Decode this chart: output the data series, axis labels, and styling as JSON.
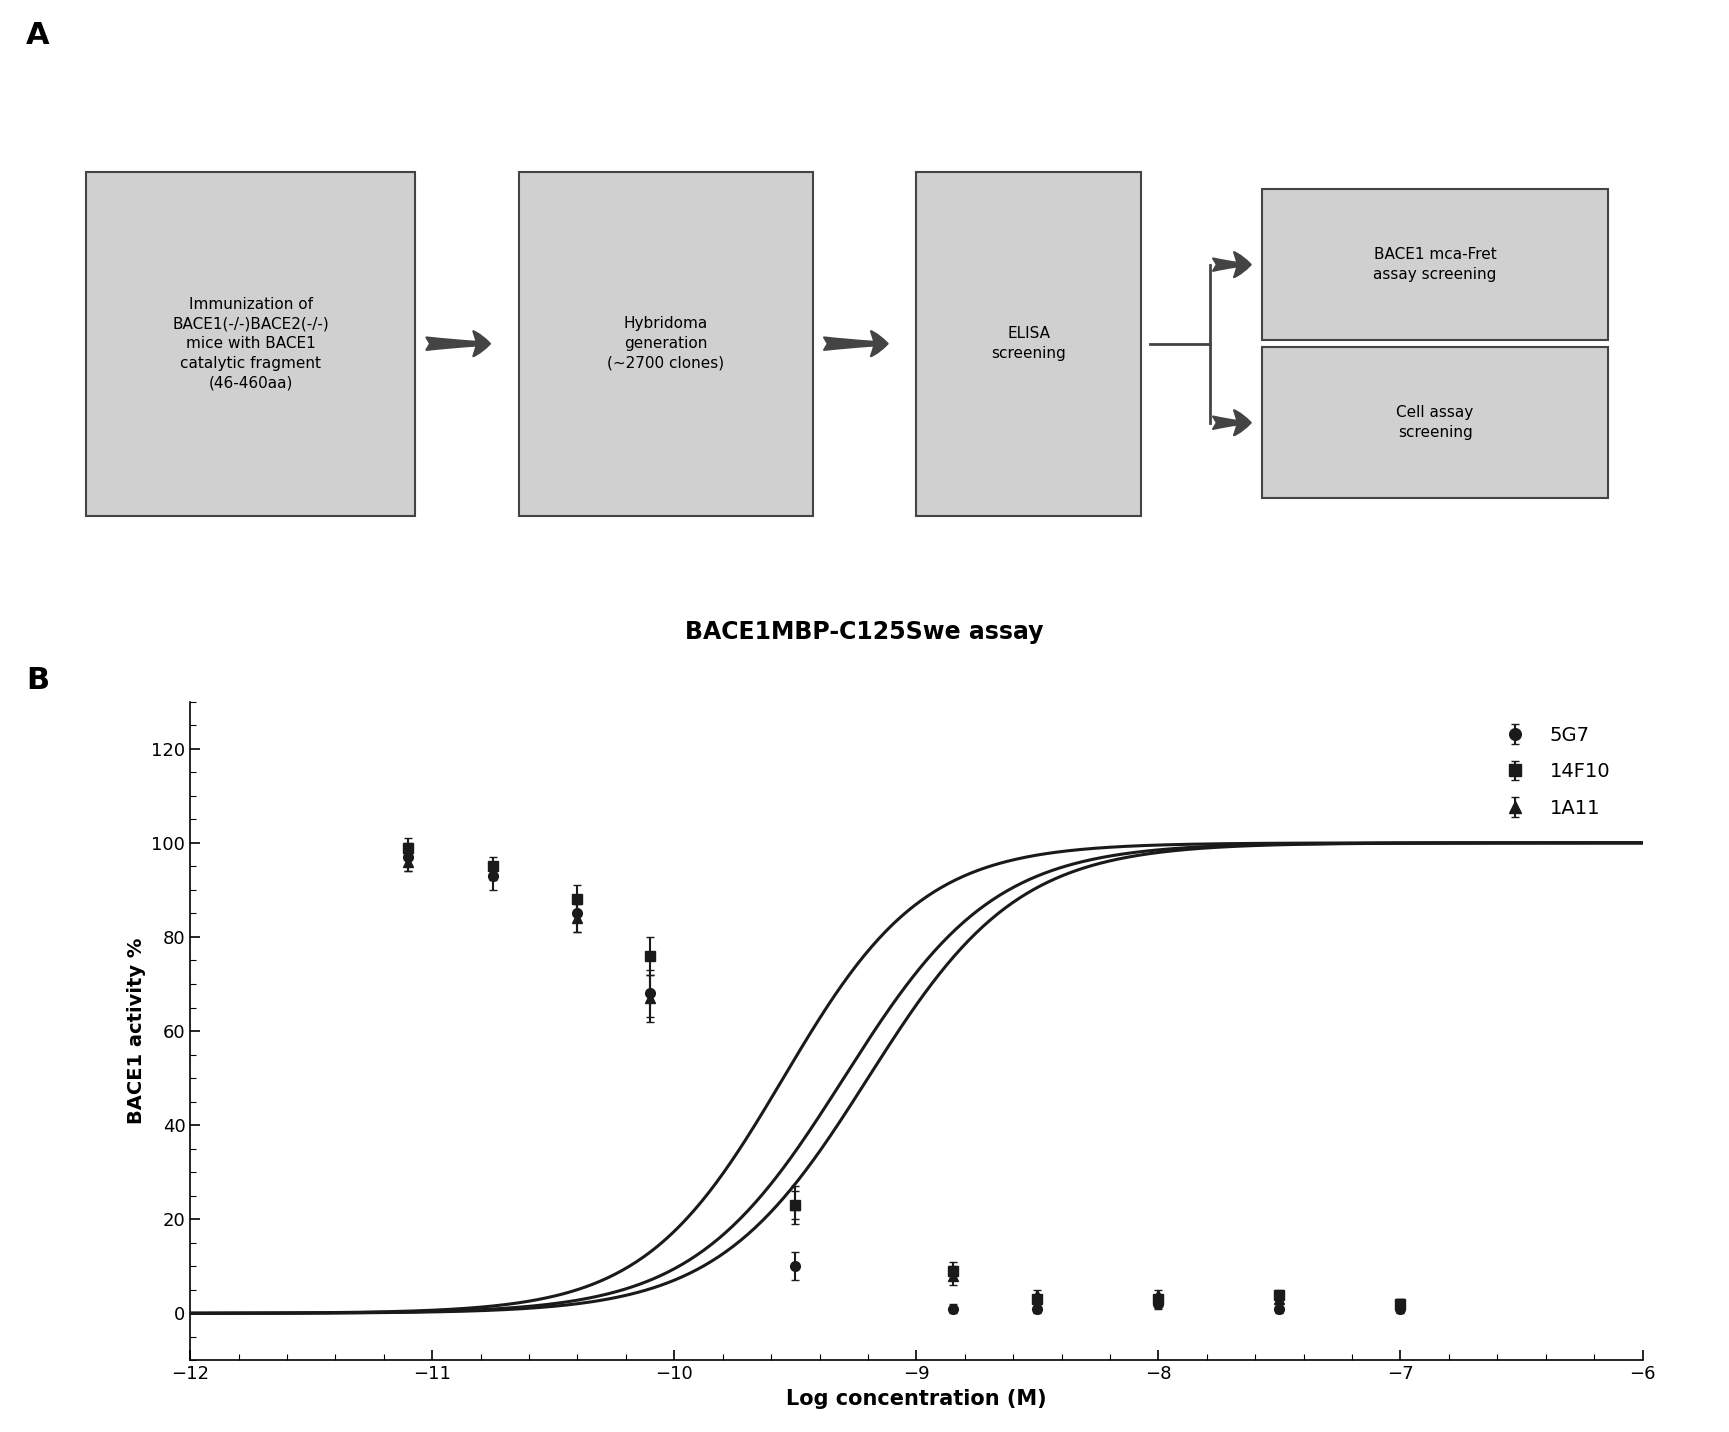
{
  "panel_a": {
    "box1_text": "Immunization of\nBACE1(-/-)BACE2(-/-)\nmice with BACE1\ncatalytic fragment\n(46-460aa)",
    "box2_text": "Hybridoma\ngeneration\n(~2700 clones)",
    "box3_text": "ELISA\nscreening",
    "box4_text": "BACE1 mca-Fret\nassay screening",
    "box5_text": "Cell assay\nscreening",
    "box_facecolor": "#d0d0d0",
    "box_edgecolor": "#444444",
    "arrow_color": "#444444"
  },
  "panel_b": {
    "title": "BACE1MBP-C125Swe assay",
    "xlabel": "Log concentration (M)",
    "ylabel": "BACE1 activity %",
    "xlim": [
      -12,
      -6
    ],
    "ylim": [
      -10,
      130
    ],
    "yticks": [
      0,
      20,
      40,
      60,
      80,
      100,
      120
    ],
    "xticks": [
      -12,
      -11,
      -10,
      -9,
      -8,
      -7,
      -6
    ],
    "series": [
      {
        "label": "5G7",
        "marker": "o",
        "color": "#1a1a1a",
        "ec50_log": -9.55,
        "hill": 1.5,
        "top": 100,
        "bottom": 0,
        "x_data": [
          -11.1,
          -10.75,
          -10.4,
          -10.1,
          -9.5,
          -8.85,
          -8.5,
          -8.0,
          -7.5,
          -7.0
        ],
        "y_data": [
          97,
          93,
          85,
          68,
          10,
          1,
          1,
          2,
          1,
          1
        ],
        "y_err": [
          3,
          3,
          4,
          5,
          3,
          1,
          1,
          1,
          1,
          1
        ]
      },
      {
        "label": "14F10",
        "marker": "s",
        "color": "#1a1a1a",
        "ec50_log": -9.3,
        "hill": 1.4,
        "top": 100,
        "bottom": 0,
        "x_data": [
          -11.1,
          -10.75,
          -10.4,
          -10.1,
          -9.5,
          -8.85,
          -8.5,
          -8.0,
          -7.5,
          -7.0
        ],
        "y_data": [
          99,
          95,
          88,
          76,
          23,
          9,
          3,
          3,
          4,
          2
        ],
        "y_err": [
          2,
          2,
          3,
          4,
          3,
          2,
          1,
          1,
          1,
          1
        ]
      },
      {
        "label": "1A11",
        "marker": "^",
        "color": "#1a1a1a",
        "ec50_log": -9.2,
        "hill": 1.4,
        "top": 100,
        "bottom": 0,
        "x_data": [
          -11.1,
          -10.75,
          -10.4,
          -10.1,
          -9.5,
          -8.85,
          -8.5,
          -8.0,
          -7.5,
          -7.0
        ],
        "y_data": [
          96,
          94,
          84,
          67,
          23,
          8,
          4,
          4,
          3,
          2
        ],
        "y_err": [
          2,
          2,
          3,
          5,
          4,
          2,
          1,
          1,
          1,
          1
        ]
      }
    ]
  }
}
